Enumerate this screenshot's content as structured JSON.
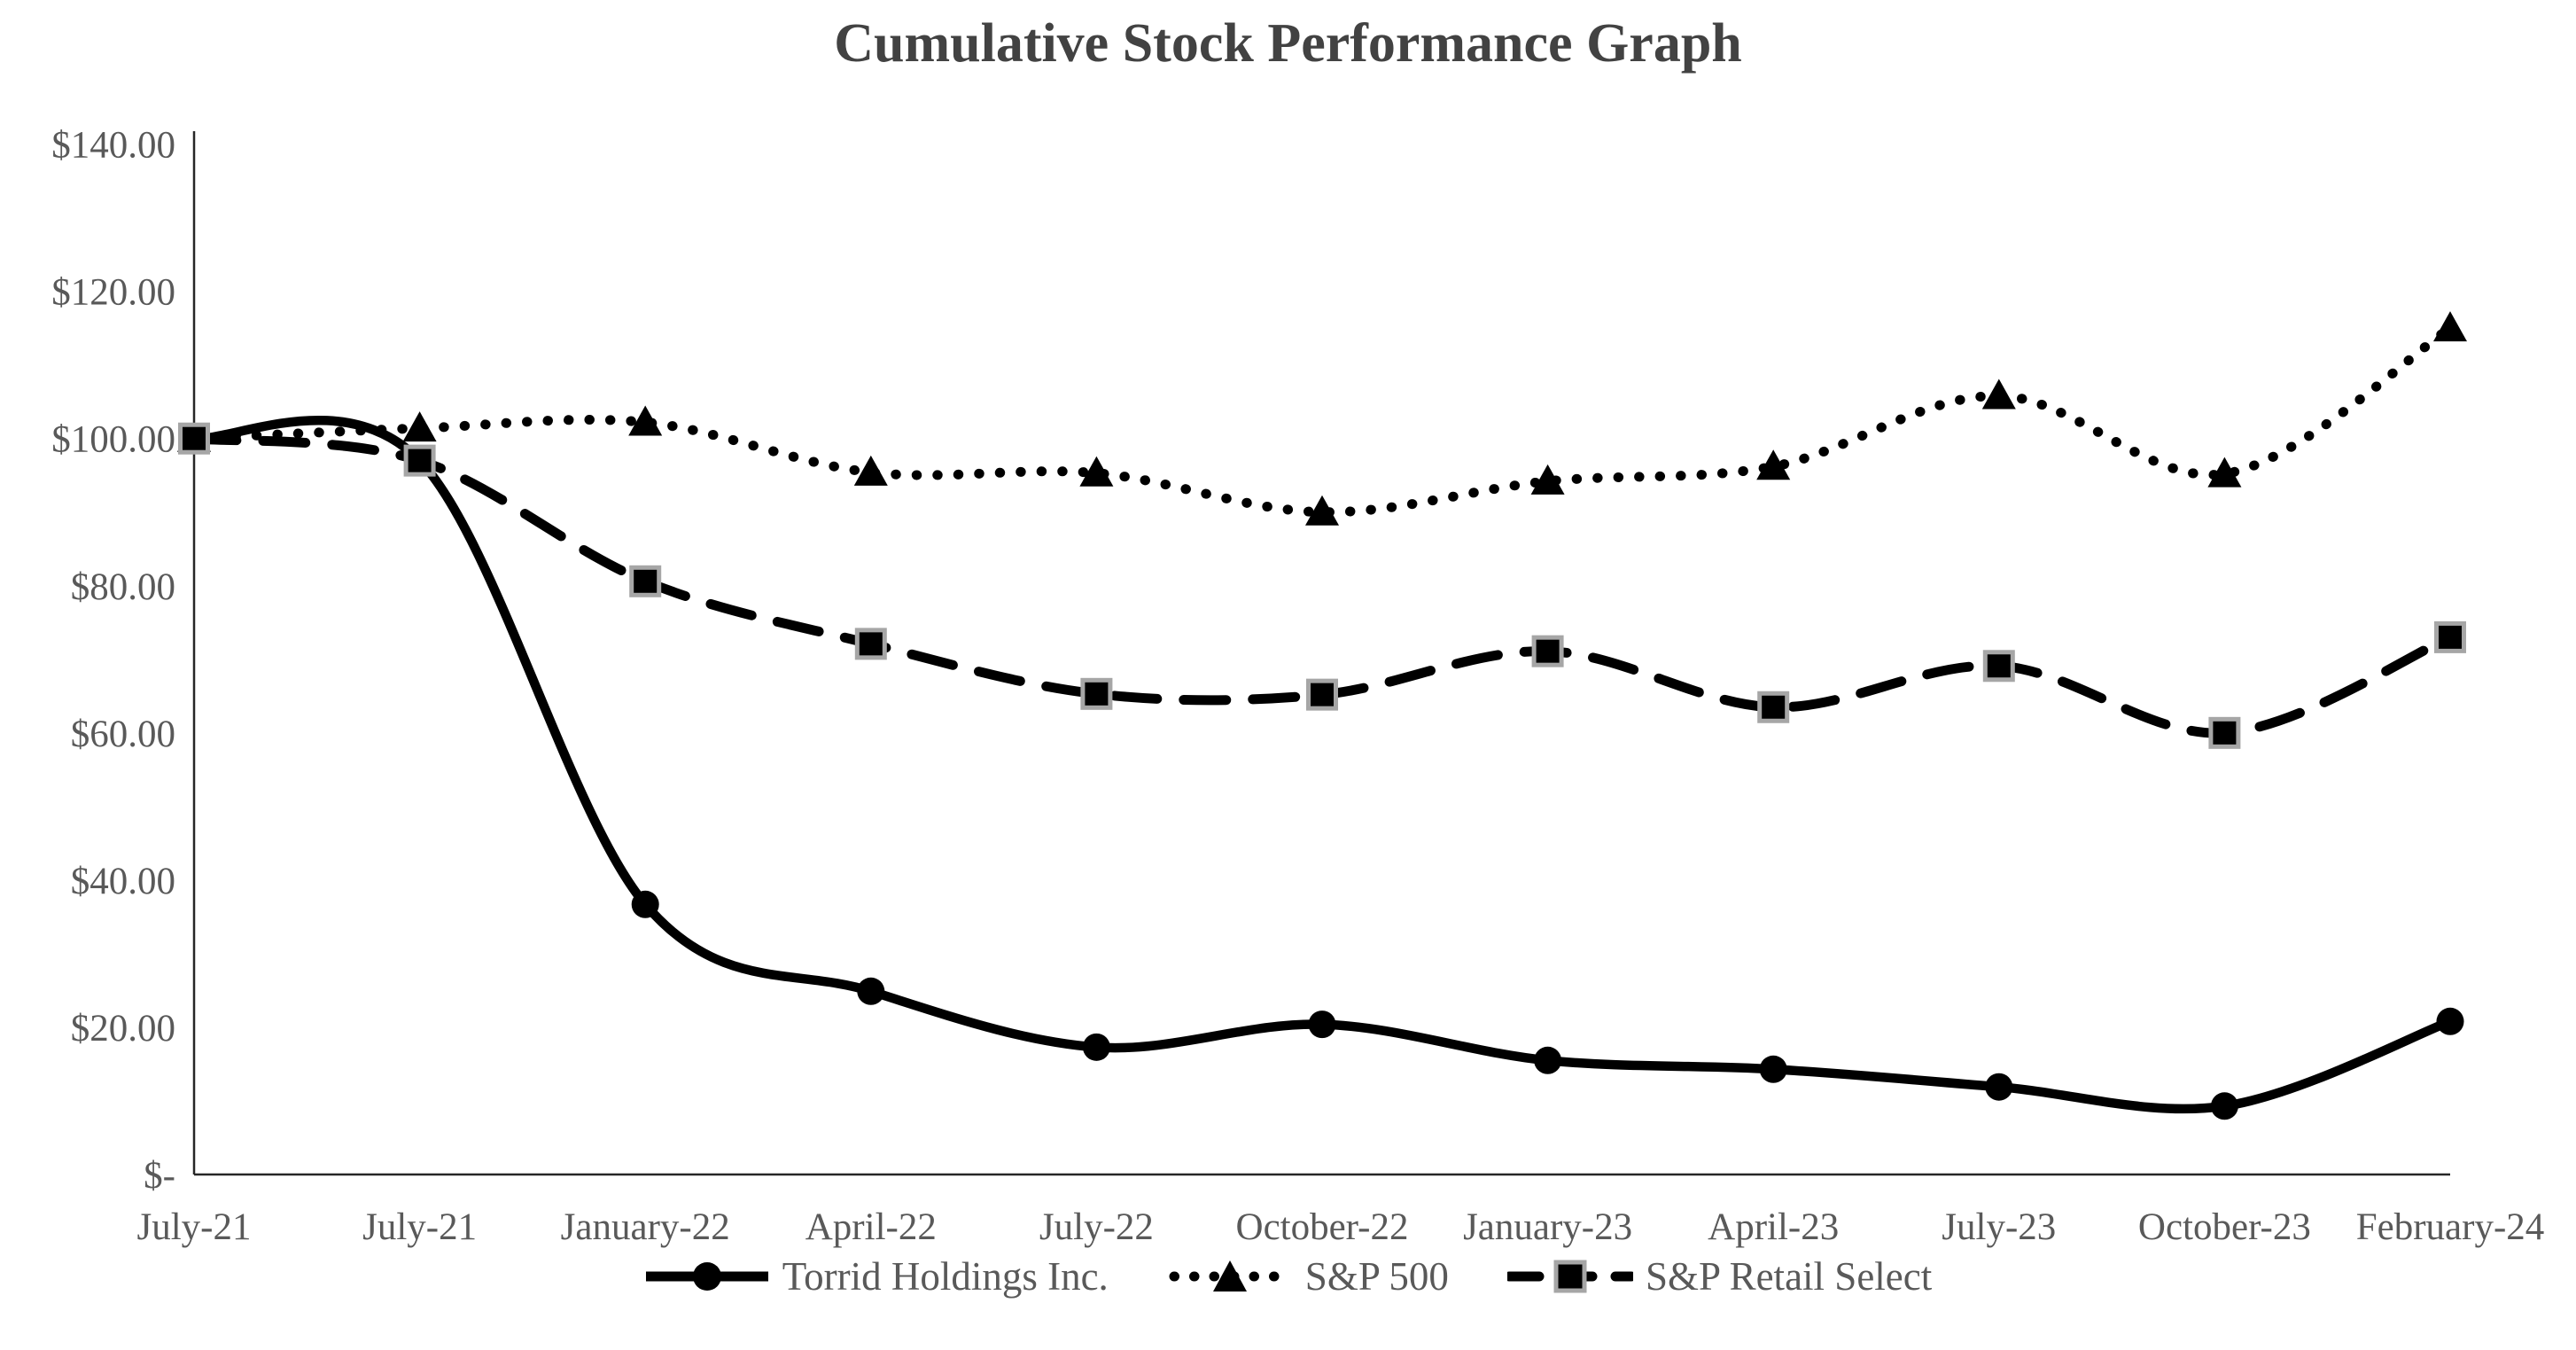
{
  "chart_data": {
    "type": "line",
    "title": "Cumulative Stock Performance Graph",
    "categories": [
      "July-21",
      "July-21",
      "January-22",
      "April-22",
      "July-22",
      "October-22",
      "January-23",
      "April-23",
      "July-23",
      "October-23",
      "February-24"
    ],
    "series": [
      {
        "name": "Torrid Holdings Inc.",
        "marker": "circle",
        "line": "solid",
        "values": [
          100.0,
          97.0,
          36.7,
          24.9,
          17.3,
          20.4,
          15.5,
          14.3,
          11.9,
          9.3,
          20.8
        ]
      },
      {
        "name": "S&P 500",
        "marker": "triangle",
        "line": "dotted",
        "values": [
          100.0,
          101.4,
          102.2,
          95.4,
          95.3,
          90.0,
          94.2,
          96.2,
          105.8,
          95.2,
          115.0
        ]
      },
      {
        "name": "S&P Retail Select",
        "marker": "square",
        "line": "dashed",
        "values": [
          100.0,
          97.0,
          80.6,
          72.1,
          65.3,
          65.2,
          71.1,
          63.5,
          69.1,
          60.0,
          73.0
        ]
      }
    ],
    "y_axis": {
      "min": 0,
      "max": 140,
      "ticks": [
        {
          "label": "$140.00",
          "value": 140
        },
        {
          "label": "$120.00",
          "value": 120
        },
        {
          "label": "$100.00",
          "value": 100
        },
        {
          "label": "$80.00",
          "value": 80
        },
        {
          "label": "$60.00",
          "value": 60
        },
        {
          "label": "$40.00",
          "value": 40
        },
        {
          "label": "$20.00",
          "value": 20
        },
        {
          "label": "$-",
          "value": 0
        }
      ]
    },
    "legend_position": "bottom",
    "gridlines": false,
    "colors": {
      "line": "#000000",
      "marker_fill": "#000000",
      "square_marker_border": "#a6a6a6",
      "axis": "#262626",
      "tick_text": "#595959",
      "title_text": "#424242"
    }
  }
}
